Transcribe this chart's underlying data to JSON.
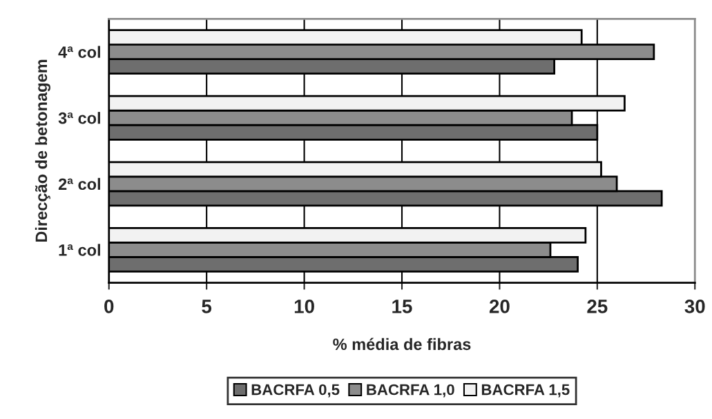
{
  "chart_data": {
    "type": "bar",
    "orientation": "horizontal",
    "xlabel": "% média de fibras",
    "ylabel": "Direcção de betonagem",
    "categories": [
      "4ª col",
      "3ª col",
      "2ª col",
      "1ª col"
    ],
    "series": [
      {
        "name": "BACRFA 0,5",
        "color": "#6e6e6e",
        "values": [
          22.8,
          25.0,
          28.3,
          24.0
        ]
      },
      {
        "name": "BACRFA 1,0",
        "color": "#8c8c8c",
        "values": [
          27.9,
          23.7,
          26.0,
          22.6
        ]
      },
      {
        "name": "BACRFA 1,5",
        "color": "#f2f2f2",
        "values": [
          24.2,
          26.4,
          25.2,
          24.4
        ]
      }
    ],
    "xlim": [
      0,
      30
    ],
    "xticks": [
      0,
      5,
      10,
      15,
      20,
      25,
      30
    ],
    "grid": "x",
    "legend": "bottom"
  }
}
